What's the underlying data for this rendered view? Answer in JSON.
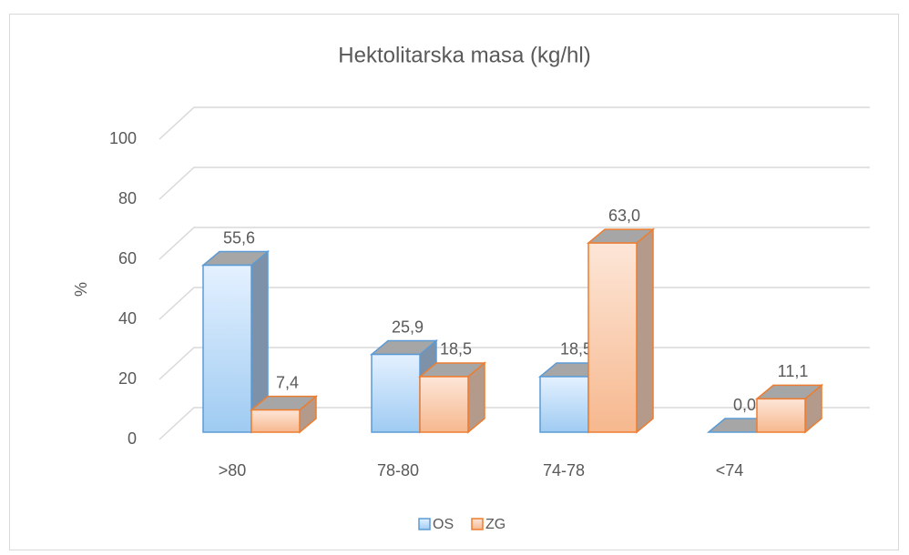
{
  "chart_data": {
    "type": "bar",
    "title": "Hektolitarska  masa (kg/hl)",
    "ylabel": "%",
    "categories": [
      ">80",
      "78-80",
      "74-78",
      "<74"
    ],
    "series": [
      {
        "name": "OS",
        "color": "#5b9bd5",
        "values": [
          55.6,
          25.9,
          18.5,
          0.0
        ],
        "value_labels": [
          "55,6",
          "25,9",
          "18,5",
          "0,0"
        ]
      },
      {
        "name": "ZG",
        "color": "#ed7d31",
        "values": [
          7.4,
          18.5,
          63.0,
          11.1
        ],
        "value_labels": [
          "7,4",
          "18,5",
          "63,0",
          "11,1"
        ]
      }
    ],
    "ylim": [
      0,
      100
    ],
    "yticks": [
      0,
      20,
      40,
      60,
      80,
      100
    ],
    "grid": true,
    "legend": "bottom"
  }
}
